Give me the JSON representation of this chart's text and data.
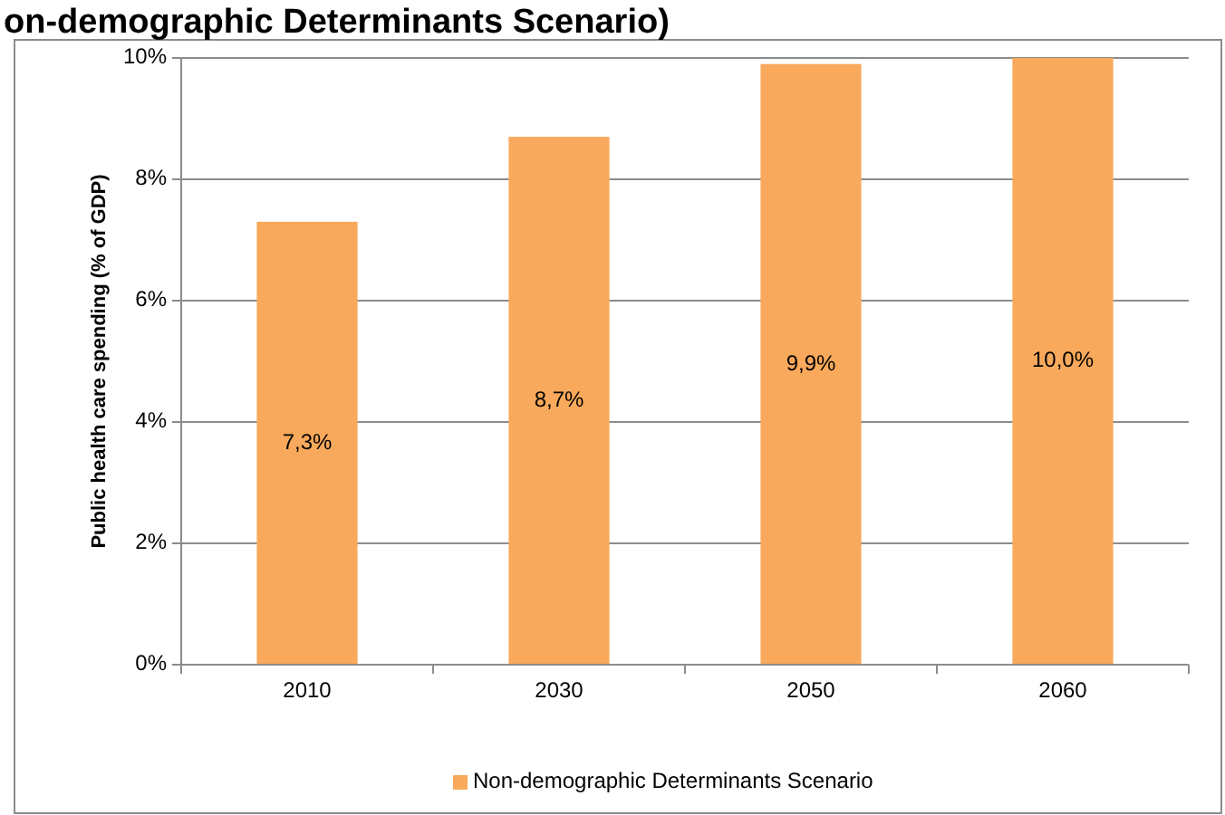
{
  "chart_data": {
    "type": "bar",
    "title": "on-demographic Determinants Scenario)",
    "ylabel": "Public health care spending (% of GDP)",
    "categories": [
      "2010",
      "2030",
      "2050",
      "2060"
    ],
    "series": [
      {
        "name": "Non-demographic Determinants Scenario",
        "color": "#f9a95b",
        "values": [
          7.3,
          8.7,
          9.9,
          10.0
        ],
        "value_labels": [
          "7,3%",
          "8,7%",
          "9,9%",
          "10,0%"
        ]
      }
    ],
    "ylim": [
      0,
      10
    ],
    "yticks": [
      {
        "value": 0,
        "label": "0%"
      },
      {
        "value": 2,
        "label": "2%"
      },
      {
        "value": 4,
        "label": "4%"
      },
      {
        "value": 6,
        "label": "6%"
      },
      {
        "value": 8,
        "label": "8%"
      },
      {
        "value": 10,
        "label": "10%"
      }
    ],
    "grid": "y",
    "legend": "bottom"
  }
}
